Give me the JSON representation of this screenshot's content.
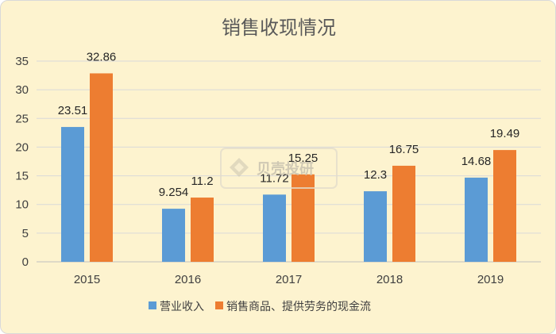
{
  "chart_data": {
    "type": "bar",
    "title": "销售收现情况",
    "categories": [
      "2015",
      "2016",
      "2017",
      "2018",
      "2019"
    ],
    "series": [
      {
        "name": "营业收入",
        "color": "#5b9bd5",
        "values": [
          23.51,
          9.254,
          11.72,
          12.3,
          14.68
        ],
        "labels": [
          "23.51",
          "9.254",
          "11.72",
          "12.3",
          "14.68"
        ]
      },
      {
        "name": "销售商品、提供劳务的现金流",
        "color": "#ed7d31",
        "values": [
          32.86,
          11.2,
          15.25,
          16.75,
          19.49
        ],
        "labels": [
          "32.86",
          "11.2",
          "15.25",
          "16.75",
          "19.49"
        ]
      }
    ],
    "ylim": [
      0,
      35
    ],
    "yticks": [
      "0",
      "5",
      "10",
      "15",
      "20",
      "25",
      "30",
      "35"
    ],
    "grid": true,
    "legend_position": "bottom",
    "xlabel": "",
    "ylabel": ""
  },
  "watermark": {
    "text": "贝壳投研"
  }
}
